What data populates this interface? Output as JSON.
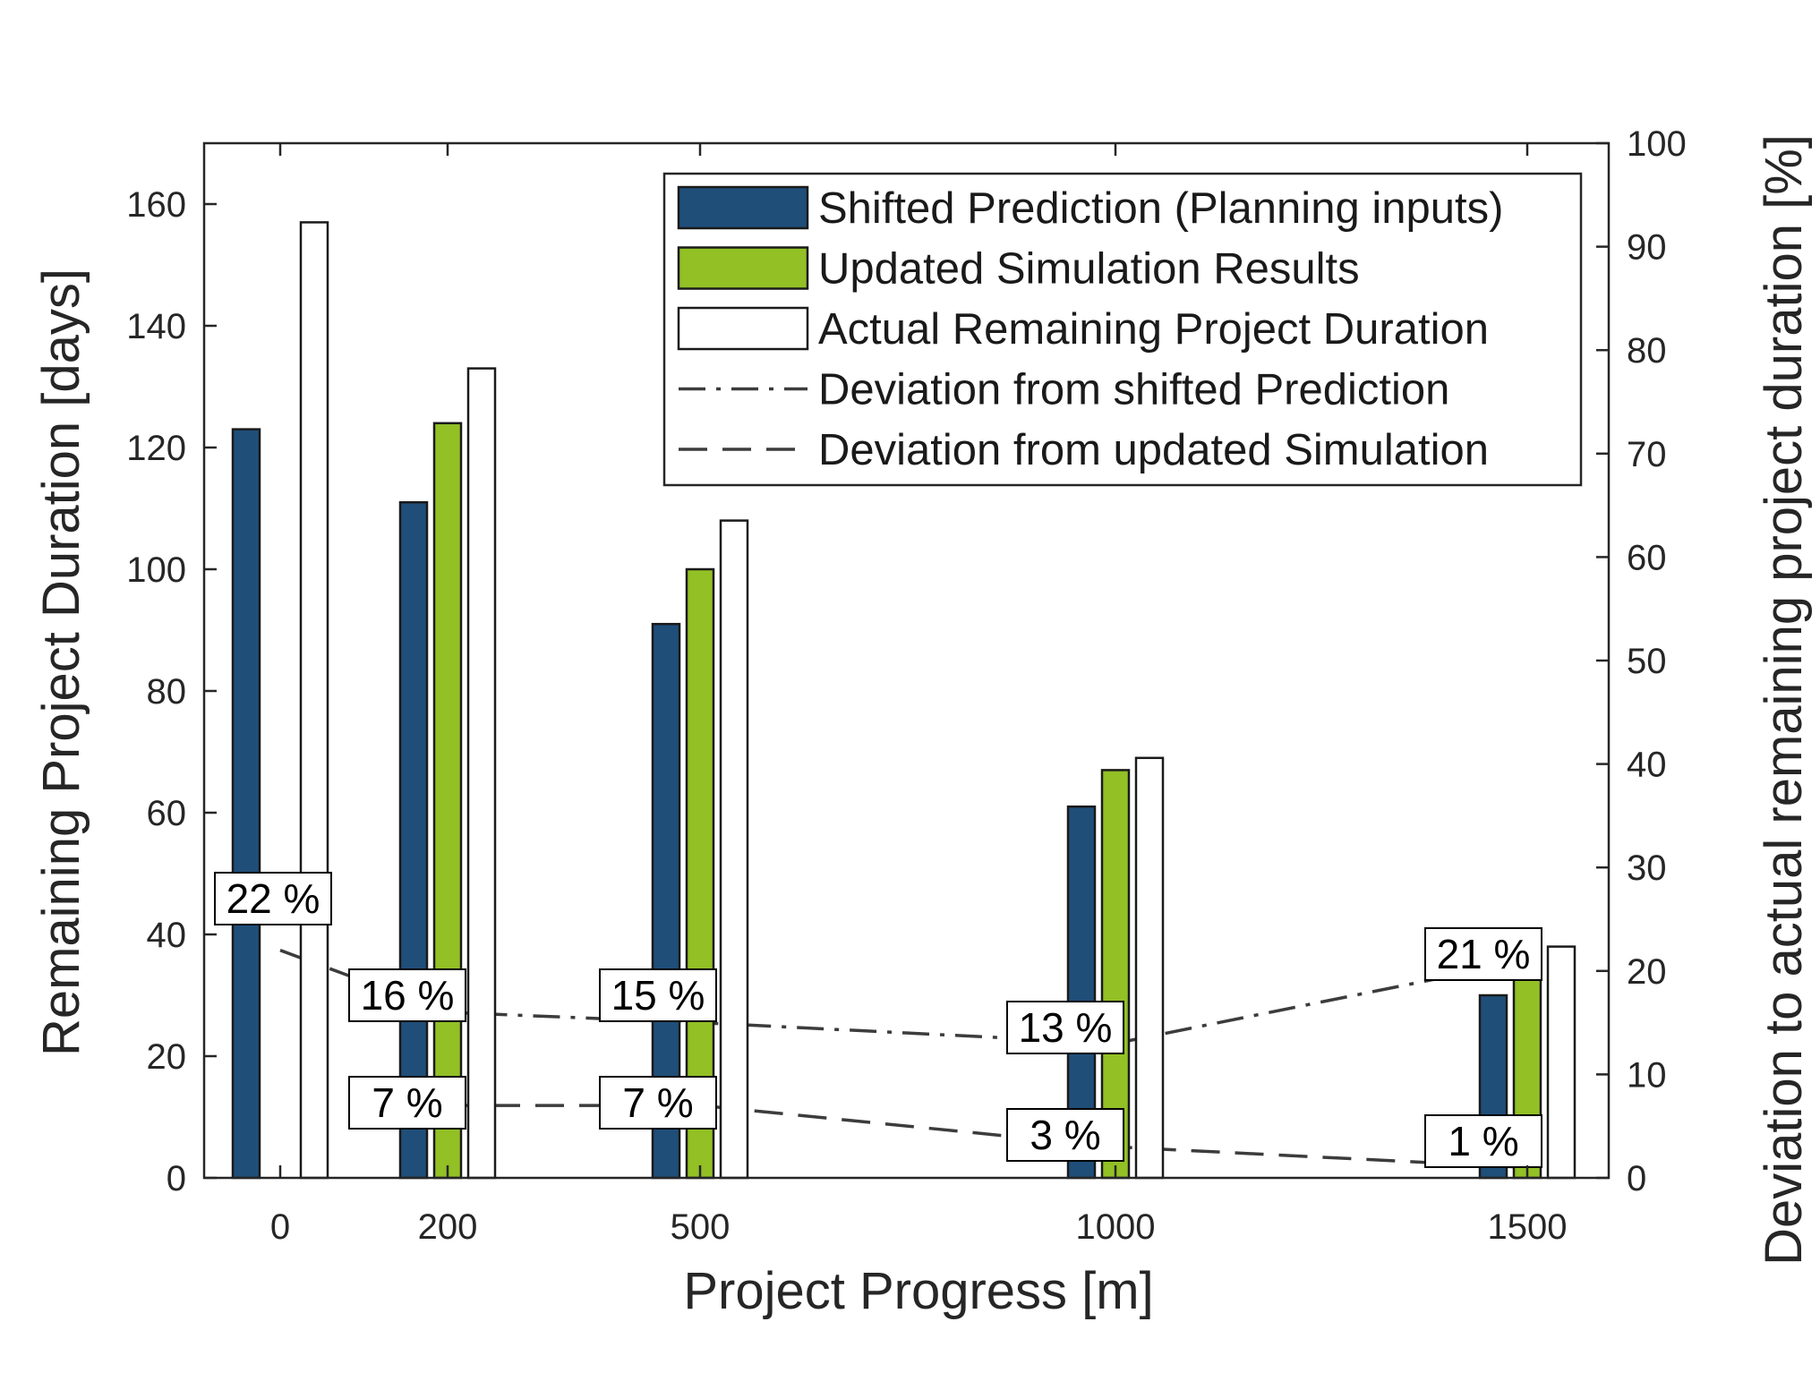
{
  "chart_data": {
    "type": "bar",
    "title": "",
    "xlabel": "Project Progress [m]",
    "ylabel": "Remaining Project Duration [days]",
    "ylabel_right": "Deviation to actual remaining project duration [%]",
    "ylim": [
      0,
      170
    ],
    "ylim_right": [
      0,
      100
    ],
    "yticks": [
      0,
      20,
      40,
      60,
      80,
      100,
      120,
      140,
      160
    ],
    "yticks_right": [
      0,
      10,
      20,
      30,
      40,
      50,
      60,
      70,
      80,
      90,
      100
    ],
    "categories": [
      "0",
      "200",
      "500",
      "1000",
      "1500"
    ],
    "series": [
      {
        "name": "Shifted Prediction (Planning inputs)",
        "kind": "bar",
        "color": "#1f4e79",
        "values": [
          123,
          111,
          91,
          61,
          30
        ]
      },
      {
        "name": "Updated Simulation Results",
        "kind": "bar",
        "color": "#92c025",
        "values": [
          null,
          124,
          100,
          67,
          36
        ]
      },
      {
        "name": "Actual Remaining Project Duration",
        "kind": "bar",
        "color": "#ffffff",
        "values": [
          157,
          133,
          108,
          69,
          38
        ]
      },
      {
        "name": "Deviation from shifted Prediction",
        "kind": "line",
        "style": "dashdot",
        "axis": "right",
        "color": "#3c3c3c",
        "values": [
          22,
          16,
          15,
          13,
          21
        ],
        "labels": [
          "22 %",
          "16 %",
          "15 %",
          "13 %",
          "21 %"
        ]
      },
      {
        "name": "Deviation from updated Simulation",
        "kind": "line",
        "style": "dashed",
        "axis": "right",
        "color": "#3c3c3c",
        "values": [
          null,
          7,
          7,
          3,
          1
        ],
        "labels": [
          null,
          "7 %",
          "7 %",
          "3 %",
          "1 %"
        ]
      }
    ],
    "legend_position": "top-right",
    "grid": false
  }
}
